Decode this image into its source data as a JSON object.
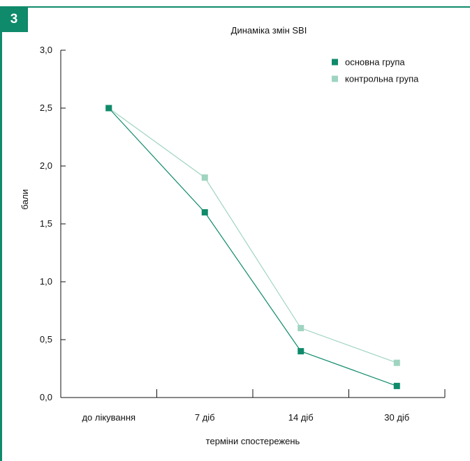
{
  "figure": {
    "badge": "3"
  },
  "colors": {
    "frame": "#0f8a6a",
    "series_main": "#0f8a6a",
    "series_control": "#9fd4c0"
  },
  "chart_data": {
    "type": "line",
    "title": "Динаміка змін SBI",
    "xlabel": "терміни спостережень",
    "ylabel": "бали",
    "categories": [
      "до лікування",
      "7 діб",
      "14 діб",
      "30 діб"
    ],
    "y_ticks": [
      "0,0",
      "0,5",
      "1,0",
      "1,5",
      "2,0",
      "2,5",
      "3,0"
    ],
    "ylim": [
      0,
      3
    ],
    "grid": false,
    "legend_position": "top-right",
    "series": [
      {
        "name": "основна група",
        "values": [
          2.5,
          1.6,
          0.4,
          0.1
        ],
        "color": "#0f8a6a"
      },
      {
        "name": "контрольна група",
        "values": [
          2.5,
          1.9,
          0.6,
          0.3
        ],
        "color": "#9fd4c0"
      }
    ]
  }
}
